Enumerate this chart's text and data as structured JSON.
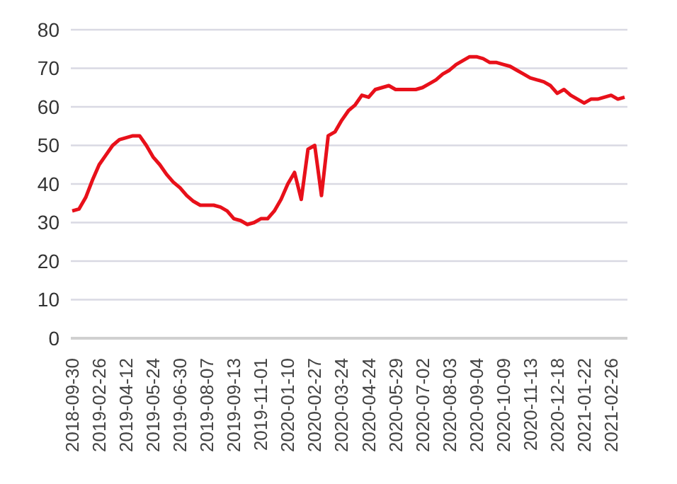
{
  "chart_data": {
    "type": "line",
    "categories": [
      "2018-09-30",
      null,
      null,
      null,
      "2019-02-26",
      null,
      null,
      null,
      "2019-04-12",
      null,
      null,
      null,
      "2019-05-24",
      null,
      null,
      null,
      "2019-06-30",
      null,
      null,
      null,
      "2019-08-07",
      null,
      null,
      null,
      "2019-09-13",
      null,
      null,
      null,
      "2019-11-01",
      null,
      null,
      null,
      "2020-01-10",
      null,
      null,
      null,
      "2020-02-27",
      null,
      null,
      null,
      "2020-03-24",
      null,
      null,
      null,
      "2020-04-24",
      null,
      null,
      null,
      "2020-05-29",
      null,
      null,
      null,
      "2020-07-02",
      null,
      null,
      null,
      "2020-08-03",
      null,
      null,
      null,
      "2020-09-04",
      null,
      null,
      null,
      "2020-10-09",
      null,
      null,
      null,
      "2020-11-13",
      null,
      null,
      null,
      "2020-12-18",
      null,
      null,
      null,
      "2021-01-22",
      null,
      null,
      null,
      "2021-02-26",
      null,
      null
    ],
    "series": [
      {
        "color": "#e8101a",
        "values": [
          33,
          33.5,
          36.5,
          41,
          45,
          47.5,
          50,
          51.5,
          52,
          52.5,
          52.5,
          50,
          47,
          45,
          42.5,
          40.5,
          39,
          37,
          35.5,
          34.5,
          34.5,
          34.5,
          34,
          33,
          31,
          30.5,
          29.5,
          30,
          31,
          31,
          33,
          36,
          40,
          43,
          36,
          49,
          50,
          37,
          52.5,
          53.5,
          56.5,
          59,
          60.5,
          63,
          62.5,
          64.5,
          65,
          65.5,
          64.5,
          64.5,
          64.5,
          64.5,
          65,
          66,
          67,
          68.5,
          69.5,
          71,
          72,
          73,
          73,
          72.5,
          71.5,
          71.5,
          71,
          70.5,
          69.5,
          68.5,
          67.5,
          67,
          66.5,
          65.5,
          63.5,
          64.5,
          63,
          62,
          61,
          62,
          62,
          62.5,
          63,
          62,
          62.5
        ]
      }
    ],
    "ylim": [
      0,
      80
    ],
    "yticks": [
      0,
      10,
      20,
      30,
      40,
      50,
      60,
      70,
      80
    ],
    "grid": "y",
    "legend": false,
    "marker": "none",
    "line_style": "solid"
  }
}
